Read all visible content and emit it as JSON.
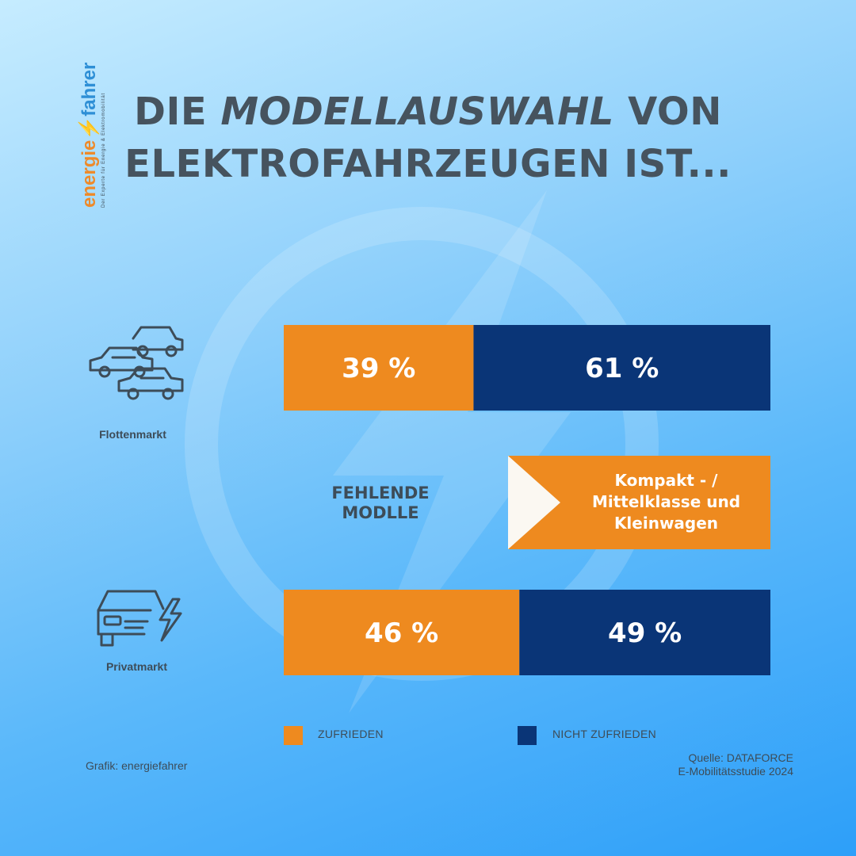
{
  "brand": {
    "logo_text_a": "energie",
    "logo_text_b": "fahrer",
    "tagline": "Der Experte für Energie & Elektromobilität",
    "colors": {
      "orange": "#ee8a1f",
      "navy": "#0a3577",
      "text": "#3d4c58"
    }
  },
  "title": {
    "line1_a": "Die ",
    "line1_italic": "Modellauswahl",
    "line1_b": " von",
    "line2": "Elektrofahrzeugen ist..."
  },
  "chart_data": {
    "type": "bar",
    "orientation": "horizontal-stacked",
    "categories": [
      "Flottenmarkt",
      "Privatmarkt"
    ],
    "series": [
      {
        "name": "ZUFRIEDEN",
        "color": "#ee8a1f",
        "values": [
          39,
          46
        ],
        "labels": [
          "39 %",
          "46 %"
        ]
      },
      {
        "name": "NICHT ZUFRIEDEN",
        "color": "#0a3577",
        "values": [
          61,
          49
        ],
        "labels": [
          "61 %",
          "49 %"
        ]
      }
    ],
    "legend": "bottom"
  },
  "segments": {
    "fleet_label": "Flottenmarkt",
    "private_label": "Privatmarkt"
  },
  "missing_models": {
    "label": "FEHLENDE MODLLE",
    "text": "Kompakt - / Mittelklasse und Kleinwagen"
  },
  "legend": {
    "satisfied": "ZUFRIEDEN",
    "not_satisfied": "NICHT ZUFRIEDEN"
  },
  "source": {
    "line1": "Quelle: DATAFORCE",
    "line2": "E-Mobilitätsstudie 2024"
  },
  "credit": "Grafik: energiefahrer",
  "icons": [
    "fleet-cars-icon",
    "electric-car-icon",
    "lightning-watermark-icon"
  ]
}
